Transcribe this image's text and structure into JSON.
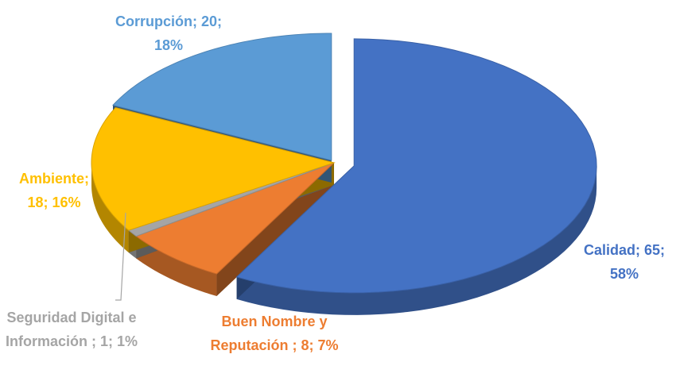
{
  "chart_data": {
    "type": "pie3d",
    "values": [
      65,
      8,
      1,
      18,
      20
    ],
    "value_labels": [
      "Calidad; 65; 58%",
      "Buen Nombre y Reputación ; 8; 7%",
      "Seguridad Digital e Información ; 1; 1%",
      "Ambiente; 18; 16%",
      "Corrupción; 20; 18%"
    ],
    "colors": [
      "#4472c4",
      "#ed7d31",
      "#a5a5a5",
      "#ffc000",
      "#5b9bd5"
    ]
  }
}
